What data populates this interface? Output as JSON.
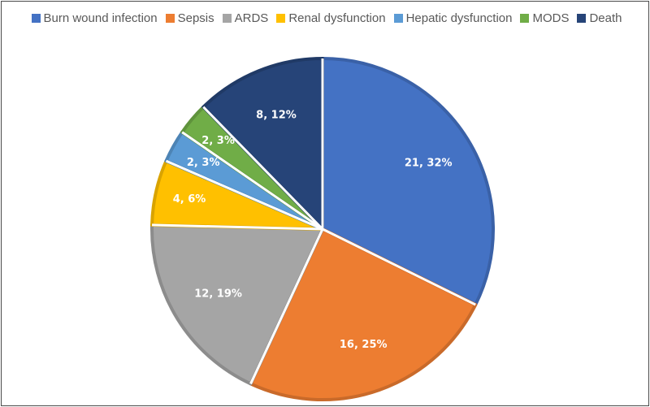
{
  "chart_data": {
    "type": "pie",
    "title": "",
    "categories": [
      "Burn wound infection",
      "Sepsis",
      "ARDS",
      "Renal dysfunction",
      "Hepatic dysfunction",
      "MODS",
      "Death"
    ],
    "values": [
      21,
      16,
      12,
      4,
      2,
      2,
      8
    ],
    "percent_labels": [
      "32%",
      "25%",
      "19%",
      "6%",
      "3%",
      "3%",
      "12%"
    ],
    "data_labels": [
      "21, 32%",
      "16, 25%",
      "12, 19%",
      "4, 6%",
      "2, 3%",
      "2, 3%",
      "8, 12%"
    ],
    "colors": [
      "#4472C4",
      "#ED7D31",
      "#A5A5A5",
      "#FFC000",
      "#5B9BD5",
      "#70AD47",
      "#264478"
    ],
    "legend_position": "top"
  }
}
